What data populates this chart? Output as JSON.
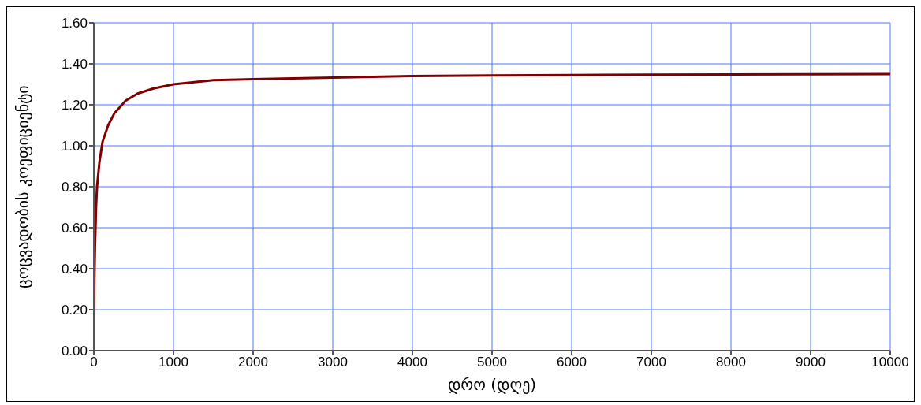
{
  "chart_data": {
    "type": "line",
    "xlabel": "დრო (დღე)",
    "ylabel": "ცოცვადობის კოეფიციენტი",
    "x": [
      0,
      7,
      14,
      28,
      40,
      70,
      110,
      180,
      260,
      400,
      550,
      750,
      1000,
      1500,
      2000,
      3000,
      4000,
      5000,
      6000,
      7000,
      8000,
      9000,
      10000
    ],
    "series": [
      {
        "color": "#800000",
        "values": [
          0.19,
          0.35,
          0.5,
          0.7,
          0.8,
          0.92,
          1.02,
          1.1,
          1.16,
          1.22,
          1.255,
          1.28,
          1.3,
          1.32,
          1.325,
          1.333,
          1.34,
          1.343,
          1.345,
          1.347,
          1.348,
          1.349,
          1.35
        ]
      }
    ],
    "xlim": [
      0,
      10000
    ],
    "xticks": [
      0,
      1000,
      2000,
      3000,
      4000,
      5000,
      6000,
      7000,
      8000,
      9000,
      10000
    ],
    "ylim": [
      0,
      1.6
    ],
    "yticks": [
      {
        "value": 0,
        "label": "0.00"
      },
      {
        "value": 0.2,
        "label": "0.20"
      },
      {
        "value": 0.4,
        "label": "0.40"
      },
      {
        "value": 0.6,
        "label": "0.60"
      },
      {
        "value": 0.8,
        "label": "0.80"
      },
      {
        "value": 1.0,
        "label": "1.00"
      },
      {
        "value": 1.2,
        "label": "1.20"
      },
      {
        "value": 1.4,
        "label": "1.40"
      },
      {
        "value": 1.6,
        "label": "1.60"
      }
    ],
    "grid": true,
    "legend": false,
    "marker": "none",
    "line_style": "solid"
  }
}
